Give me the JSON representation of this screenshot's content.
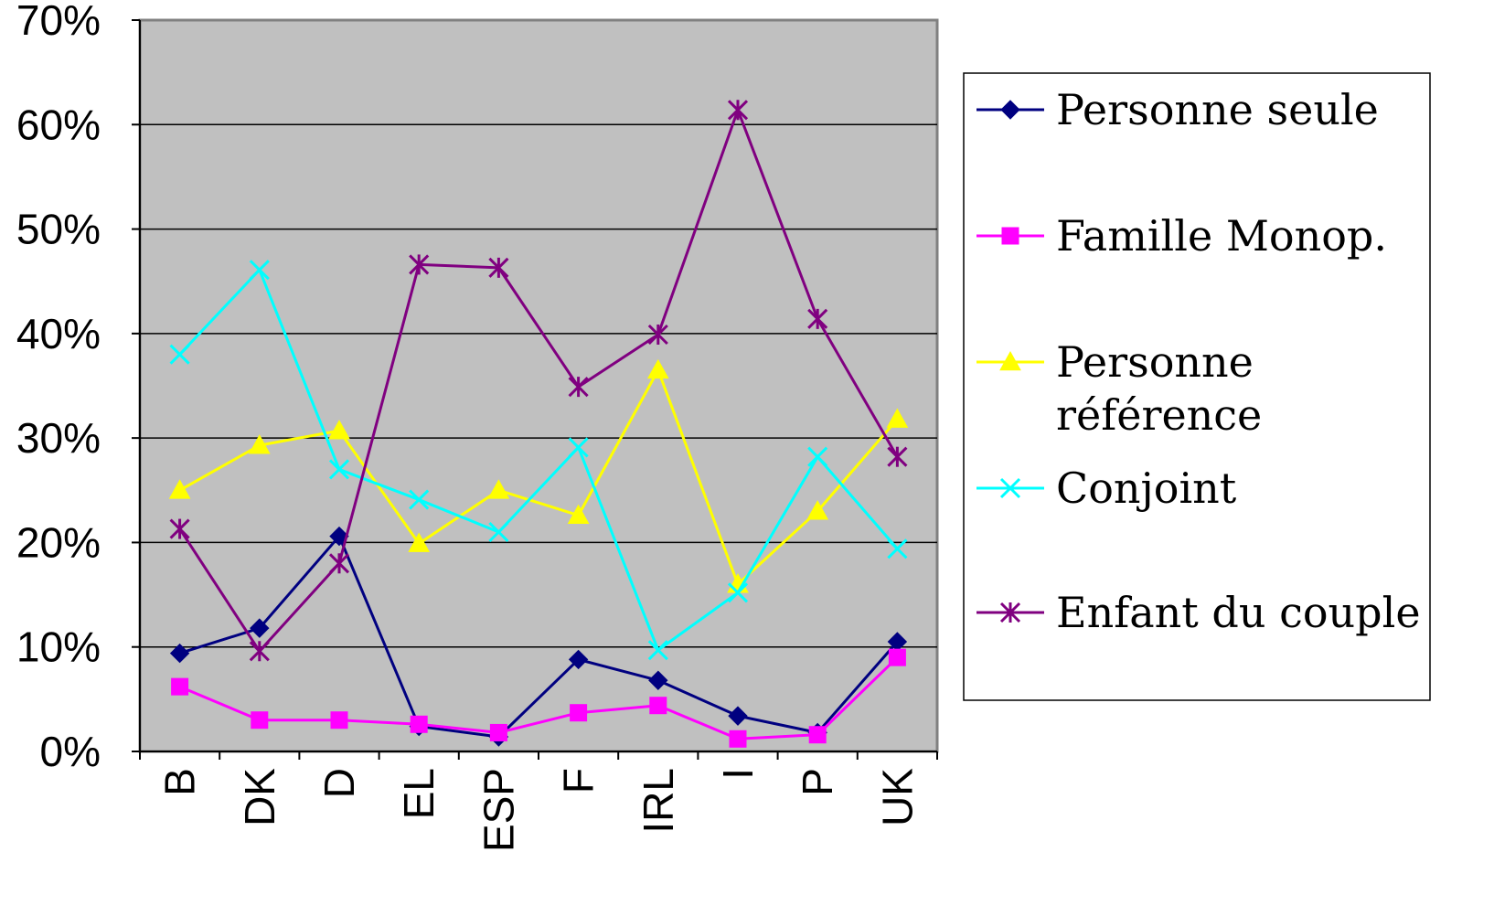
{
  "chart_data": {
    "type": "line",
    "categories": [
      "B",
      "DK",
      "D",
      "EL",
      "ESP",
      "F",
      "IRL",
      "I",
      "P",
      "UK"
    ],
    "ylim": [
      0,
      0.7
    ],
    "yticks": [
      0,
      0.1,
      0.2,
      0.3,
      0.4,
      0.5,
      0.6,
      0.7
    ],
    "ytick_labels": [
      "0%",
      "10%",
      "20%",
      "30%",
      "40%",
      "50%",
      "60%",
      "70%"
    ],
    "grid": true,
    "plot_background": "#c0c0c0",
    "legend_position": "right",
    "series": [
      {
        "name": "Personne seule",
        "color": "#000080",
        "marker": "diamond",
        "values": [
          0.094,
          0.118,
          0.206,
          0.024,
          0.014,
          0.088,
          0.068,
          0.034,
          0.018,
          0.105
        ]
      },
      {
        "name": "Famille Monop.",
        "color": "#ff00ff",
        "marker": "square",
        "values": [
          0.062,
          0.03,
          0.03,
          0.026,
          0.018,
          0.037,
          0.044,
          0.012,
          0.016,
          0.09
        ]
      },
      {
        "name": "Personne référence",
        "legend_lines": [
          "Personne",
          "référence"
        ],
        "color": "#ffff00",
        "marker": "triangle",
        "values": [
          0.25,
          0.293,
          0.307,
          0.199,
          0.25,
          0.226,
          0.365,
          0.16,
          0.23,
          0.318
        ]
      },
      {
        "name": "Conjoint",
        "color": "#00ffff",
        "marker": "x",
        "values": [
          0.38,
          0.461,
          0.27,
          0.241,
          0.21,
          0.291,
          0.097,
          0.152,
          0.282,
          0.194
        ]
      },
      {
        "name": "Enfant du couple",
        "color": "#800080",
        "marker": "asterisk",
        "values": [
          0.213,
          0.096,
          0.18,
          0.466,
          0.463,
          0.349,
          0.399,
          0.614,
          0.414,
          0.282
        ]
      }
    ]
  }
}
